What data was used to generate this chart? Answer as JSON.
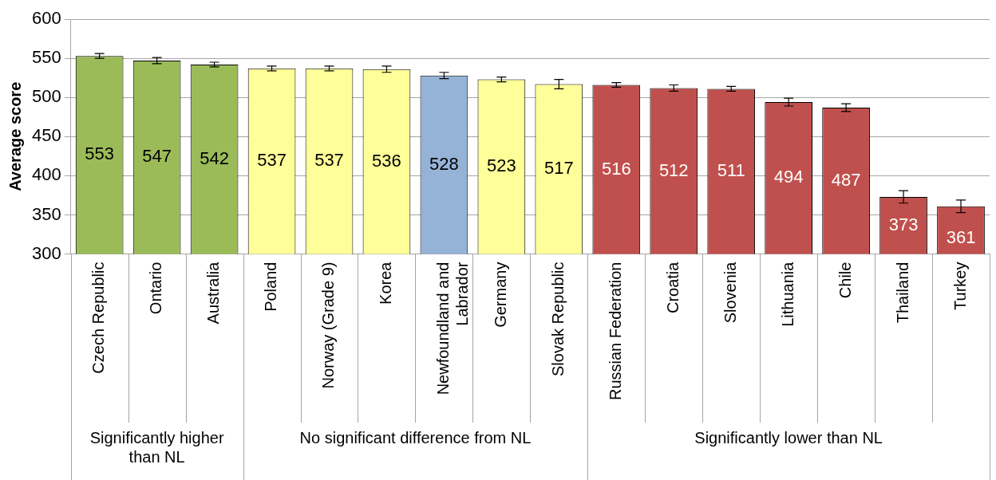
{
  "chart_data": {
    "type": "bar",
    "ylabel": "Average score",
    "categories": [
      "Czech Republic",
      "Ontario",
      "Australia",
      "Poland",
      "Norway (Grade 9)",
      "Korea",
      "Newfoundland and Labrador",
      "Germany",
      "Slovak Republic",
      "Russian Federation",
      "Croatia",
      "Slovenia",
      "Lithuania",
      "Chile",
      "Thailand",
      "Turkey"
    ],
    "values": [
      553,
      547,
      542,
      537,
      537,
      536,
      528,
      523,
      517,
      516,
      512,
      511,
      494,
      487,
      373,
      361
    ],
    "errors": [
      3,
      4,
      3,
      3,
      3,
      4,
      4,
      3,
      6,
      3,
      4,
      3,
      5,
      5,
      8,
      8
    ],
    "colors": [
      "#9bbb59",
      "#9bbb59",
      "#9bbb59",
      "#ffff99",
      "#ffff99",
      "#ffff99",
      "#95b3d7",
      "#ffff99",
      "#ffff99",
      "#c0504d",
      "#c0504d",
      "#c0504d",
      "#c0504d",
      "#c0504d",
      "#c0504d",
      "#c0504d"
    ],
    "ylim": [
      300,
      600
    ],
    "yticks": [
      300,
      350,
      400,
      450,
      500,
      550,
      600
    ],
    "grid": "y",
    "data_labels": true,
    "annotations": [
      "Significantly higher than NL",
      "No significant difference from NL",
      "Significantly lower than NL"
    ]
  }
}
